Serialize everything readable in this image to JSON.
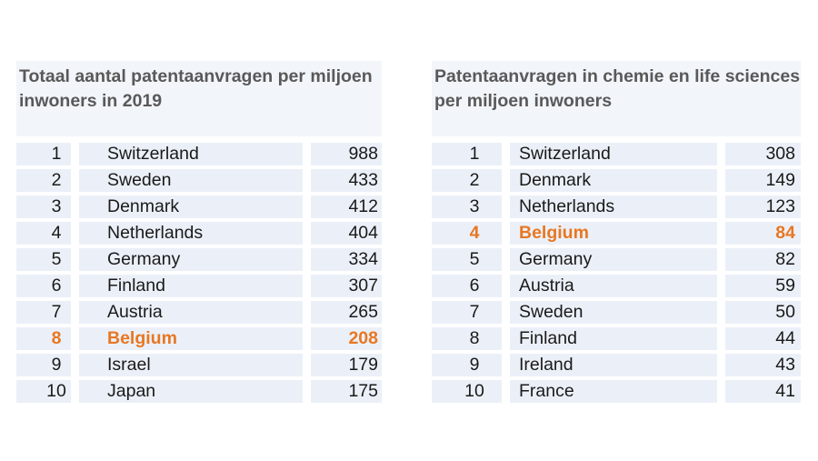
{
  "colors": {
    "title_text": "#595959",
    "row_text": "#1a1a1a",
    "highlight": "#e87722",
    "title_bg": "#f2f5f9",
    "row_bg": "#ebf0f8",
    "page_bg": "#ffffff"
  },
  "tables": [
    {
      "id": "total-patents-2019",
      "title": "Totaal aantal patentaanvragen per miljoen inwoners in 2019",
      "rows": [
        {
          "rank": 1,
          "country": "Switzerland",
          "value": 988,
          "highlight": false
        },
        {
          "rank": 2,
          "country": "Sweden",
          "value": 433,
          "highlight": false
        },
        {
          "rank": 3,
          "country": "Denmark",
          "value": 412,
          "highlight": false
        },
        {
          "rank": 4,
          "country": "Netherlands",
          "value": 404,
          "highlight": false
        },
        {
          "rank": 5,
          "country": "Germany",
          "value": 334,
          "highlight": false
        },
        {
          "rank": 6,
          "country": "Finland",
          "value": 307,
          "highlight": false
        },
        {
          "rank": 7,
          "country": "Austria",
          "value": 265,
          "highlight": false
        },
        {
          "rank": 8,
          "country": "Belgium",
          "value": 208,
          "highlight": true
        },
        {
          "rank": 9,
          "country": "Israel",
          "value": 179,
          "highlight": false
        },
        {
          "rank": 10,
          "country": "Japan",
          "value": 175,
          "highlight": false
        }
      ]
    },
    {
      "id": "chemie-life-sciences",
      "title": "Patentaanvragen in chemie en life sciences per miljoen inwoners",
      "rows": [
        {
          "rank": 1,
          "country": "Switzerland",
          "value": 308,
          "highlight": false
        },
        {
          "rank": 2,
          "country": "Denmark",
          "value": 149,
          "highlight": false
        },
        {
          "rank": 3,
          "country": "Netherlands",
          "value": 123,
          "highlight": false
        },
        {
          "rank": 4,
          "country": "Belgium",
          "value": 84,
          "highlight": true
        },
        {
          "rank": 5,
          "country": "Germany",
          "value": 82,
          "highlight": false
        },
        {
          "rank": 6,
          "country": "Austria",
          "value": 59,
          "highlight": false
        },
        {
          "rank": 7,
          "country": "Sweden",
          "value": 50,
          "highlight": false
        },
        {
          "rank": 8,
          "country": "Finland",
          "value": 44,
          "highlight": false
        },
        {
          "rank": 9,
          "country": "Ireland",
          "value": 43,
          "highlight": false
        },
        {
          "rank": 10,
          "country": "France",
          "value": 41,
          "highlight": false
        }
      ]
    }
  ],
  "chart_data": [
    {
      "type": "table",
      "title": "Totaal aantal patentaanvragen per miljoen inwoners in 2019",
      "columns": [
        "rank",
        "country",
        "patent_applications_per_million"
      ],
      "rows": [
        [
          1,
          "Switzerland",
          988
        ],
        [
          2,
          "Sweden",
          433
        ],
        [
          3,
          "Denmark",
          412
        ],
        [
          4,
          "Netherlands",
          404
        ],
        [
          5,
          "Germany",
          334
        ],
        [
          6,
          "Finland",
          307
        ],
        [
          7,
          "Austria",
          265
        ],
        [
          8,
          "Belgium",
          208
        ],
        [
          9,
          "Israel",
          179
        ],
        [
          10,
          "Japan",
          175
        ]
      ],
      "highlighted_row": {
        "rank": 8,
        "country": "Belgium",
        "value": 208,
        "highlight_color": "#e87722"
      }
    },
    {
      "type": "table",
      "title": "Patentaanvragen in chemie en life sciences per miljoen inwoners",
      "columns": [
        "rank",
        "country",
        "patent_applications_per_million"
      ],
      "rows": [
        [
          1,
          "Switzerland",
          308
        ],
        [
          2,
          "Denmark",
          149
        ],
        [
          3,
          "Netherlands",
          123
        ],
        [
          4,
          "Belgium",
          84
        ],
        [
          5,
          "Germany",
          82
        ],
        [
          6,
          "Austria",
          59
        ],
        [
          7,
          "Sweden",
          50
        ],
        [
          8,
          "Finland",
          44
        ],
        [
          9,
          "Ireland",
          43
        ],
        [
          10,
          "France",
          41
        ]
      ],
      "highlighted_row": {
        "rank": 4,
        "country": "Belgium",
        "value": 84,
        "highlight_color": "#e87722"
      }
    }
  ]
}
